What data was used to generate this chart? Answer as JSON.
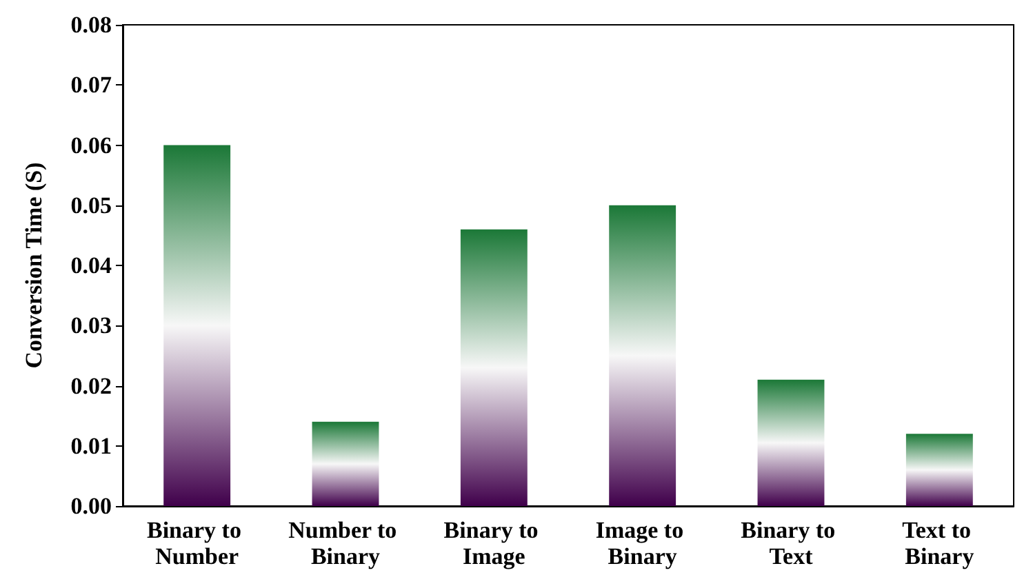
{
  "chart_data": {
    "type": "bar",
    "ylabel": "Conversion Time (S)",
    "categories": [
      "Binary to Number",
      "Number to Binary",
      "Binary to Image",
      "Image to Binary",
      "Binary to Text",
      "Text to Binary"
    ],
    "values": [
      0.06,
      0.014,
      0.046,
      0.05,
      0.021,
      0.012
    ],
    "color": "#1b7837",
    "ylim": [
      0,
      0.08
    ],
    "yticks": [
      {
        "value": 0,
        "label": "0.00"
      },
      {
        "value": 0.01,
        "label": "0.01"
      },
      {
        "value": 0.02,
        "label": "0.02"
      },
      {
        "value": 0.03,
        "label": "0.03"
      },
      {
        "value": 0.04,
        "label": "0.04"
      },
      {
        "value": 0.05,
        "label": "0.05"
      },
      {
        "value": 0.06,
        "label": "0.06"
      },
      {
        "value": 0.07,
        "label": "0.07"
      },
      {
        "value": 0.08,
        "label": "0.08"
      }
    ],
    "grid": false
  }
}
